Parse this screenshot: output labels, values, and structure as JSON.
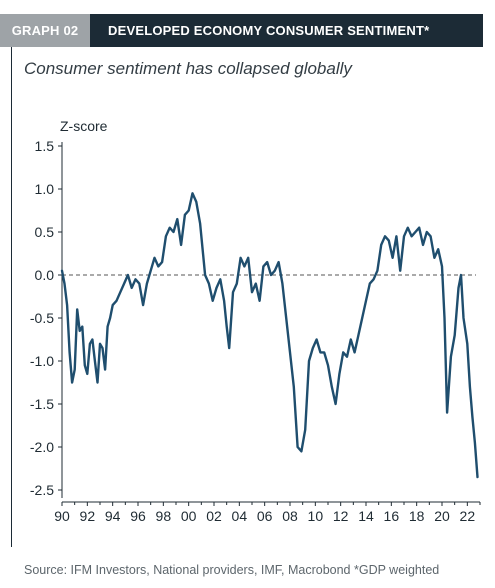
{
  "header": {
    "tag": "GRAPH 02",
    "title": "DEVELOPED ECONOMY CONSUMER SENTIMENT*"
  },
  "subtitle": "Consumer sentiment has collapsed globally",
  "source": "Source: IFM Investors, National providers, IMF, Macrobond   *GDP weighted",
  "colors": {
    "line": "#1f4e6e",
    "header_dark": "#1c2b36",
    "header_tag": "#9ea3a7",
    "zero_line": "#555555"
  },
  "chart_data": {
    "type": "line",
    "title": "DEVELOPED ECONOMY CONSUMER SENTIMENT*",
    "ylabel": "Z-score",
    "xlabel": "",
    "ylim": [
      -2.5,
      1.5
    ],
    "xlim": [
      1990,
      2023
    ],
    "y_ticks": [
      1.5,
      1.0,
      0.5,
      0.0,
      -0.5,
      -1.0,
      -1.5,
      -2.0,
      -2.5
    ],
    "y_tick_labels": [
      "1.5",
      "1.0",
      "0.5",
      "0.0",
      "-0.5",
      "-1.0",
      "-1.5",
      "-2.0",
      "-2.5"
    ],
    "x_ticks": [
      1990,
      1992,
      1994,
      1996,
      1998,
      2000,
      2002,
      2004,
      2006,
      2008,
      2010,
      2012,
      2014,
      2016,
      2018,
      2020,
      2022
    ],
    "x_tick_labels": [
      "90",
      "92",
      "94",
      "96",
      "98",
      "00",
      "02",
      "04",
      "06",
      "08",
      "10",
      "12",
      "14",
      "16",
      "18",
      "20",
      "22"
    ],
    "reference_line": {
      "y": 0,
      "style": "dashed"
    },
    "grid": false,
    "series": [
      {
        "x": [
          1990.0,
          1990.2,
          1990.4,
          1990.6,
          1990.8,
          1991.0,
          1991.2,
          1991.4,
          1991.6,
          1991.8,
          1992.0,
          1992.2,
          1992.4,
          1992.6,
          1992.8,
          1993.0,
          1993.2,
          1993.4,
          1993.6,
          1993.8,
          1994.0,
          1994.3,
          1994.6,
          1994.9,
          1995.2,
          1995.5,
          1995.8,
          1996.1,
          1996.4,
          1996.7,
          1997.0,
          1997.3,
          1997.6,
          1997.9,
          1998.2,
          1998.5,
          1998.8,
          1999.1,
          1999.4,
          1999.7,
          2000.0,
          2000.3,
          2000.6,
          2000.9,
          2001.1,
          2001.3,
          2001.6,
          2001.9,
          2002.2,
          2002.5,
          2002.8,
          2003.0,
          2003.2,
          2003.5,
          2003.8,
          2004.1,
          2004.4,
          2004.7,
          2005.0,
          2005.3,
          2005.6,
          2005.9,
          2006.2,
          2006.5,
          2006.8,
          2007.1,
          2007.4,
          2007.7,
          2008.0,
          2008.3,
          2008.6,
          2008.9,
          2009.2,
          2009.5,
          2009.8,
          2010.1,
          2010.4,
          2010.7,
          2011.0,
          2011.3,
          2011.6,
          2011.9,
          2012.2,
          2012.5,
          2012.8,
          2013.1,
          2013.4,
          2013.7,
          2014.0,
          2014.3,
          2014.6,
          2014.9,
          2015.2,
          2015.5,
          2015.8,
          2016.1,
          2016.4,
          2016.7,
          2017.0,
          2017.3,
          2017.6,
          2017.9,
          2018.2,
          2018.5,
          2018.8,
          2019.1,
          2019.4,
          2019.7,
          2020.0,
          2020.2,
          2020.4,
          2020.7,
          2021.0,
          2021.3,
          2021.5,
          2021.7,
          2022.0,
          2022.2,
          2022.4,
          2022.6,
          2022.8
        ],
        "values": [
          0.05,
          -0.1,
          -0.35,
          -0.9,
          -1.25,
          -1.1,
          -0.4,
          -0.65,
          -0.6,
          -1.05,
          -1.15,
          -0.8,
          -0.75,
          -1.0,
          -1.25,
          -0.8,
          -0.85,
          -1.1,
          -0.6,
          -0.5,
          -0.35,
          -0.3,
          -0.2,
          -0.1,
          0.0,
          -0.15,
          -0.05,
          -0.1,
          -0.35,
          -0.1,
          0.05,
          0.2,
          0.1,
          0.15,
          0.45,
          0.55,
          0.5,
          0.65,
          0.35,
          0.7,
          0.75,
          0.95,
          0.85,
          0.6,
          0.3,
          0.0,
          -0.1,
          -0.3,
          -0.15,
          -0.05,
          -0.3,
          -0.6,
          -0.85,
          -0.2,
          -0.1,
          0.2,
          0.1,
          0.2,
          -0.2,
          -0.1,
          -0.3,
          0.1,
          0.15,
          0.0,
          0.05,
          0.15,
          -0.1,
          -0.5,
          -0.9,
          -1.3,
          -2.0,
          -2.05,
          -1.8,
          -1.0,
          -0.85,
          -0.75,
          -0.9,
          -0.9,
          -1.05,
          -1.3,
          -1.5,
          -1.15,
          -0.9,
          -0.95,
          -0.75,
          -0.9,
          -0.7,
          -0.5,
          -0.3,
          -0.1,
          -0.05,
          0.05,
          0.35,
          0.45,
          0.4,
          0.2,
          0.45,
          0.05,
          0.45,
          0.55,
          0.45,
          0.5,
          0.55,
          0.35,
          0.5,
          0.45,
          0.2,
          0.3,
          0.1,
          -0.5,
          -1.6,
          -0.95,
          -0.7,
          -0.15,
          0.0,
          -0.5,
          -0.8,
          -1.3,
          -1.65,
          -1.95,
          -2.35
        ]
      }
    ]
  }
}
